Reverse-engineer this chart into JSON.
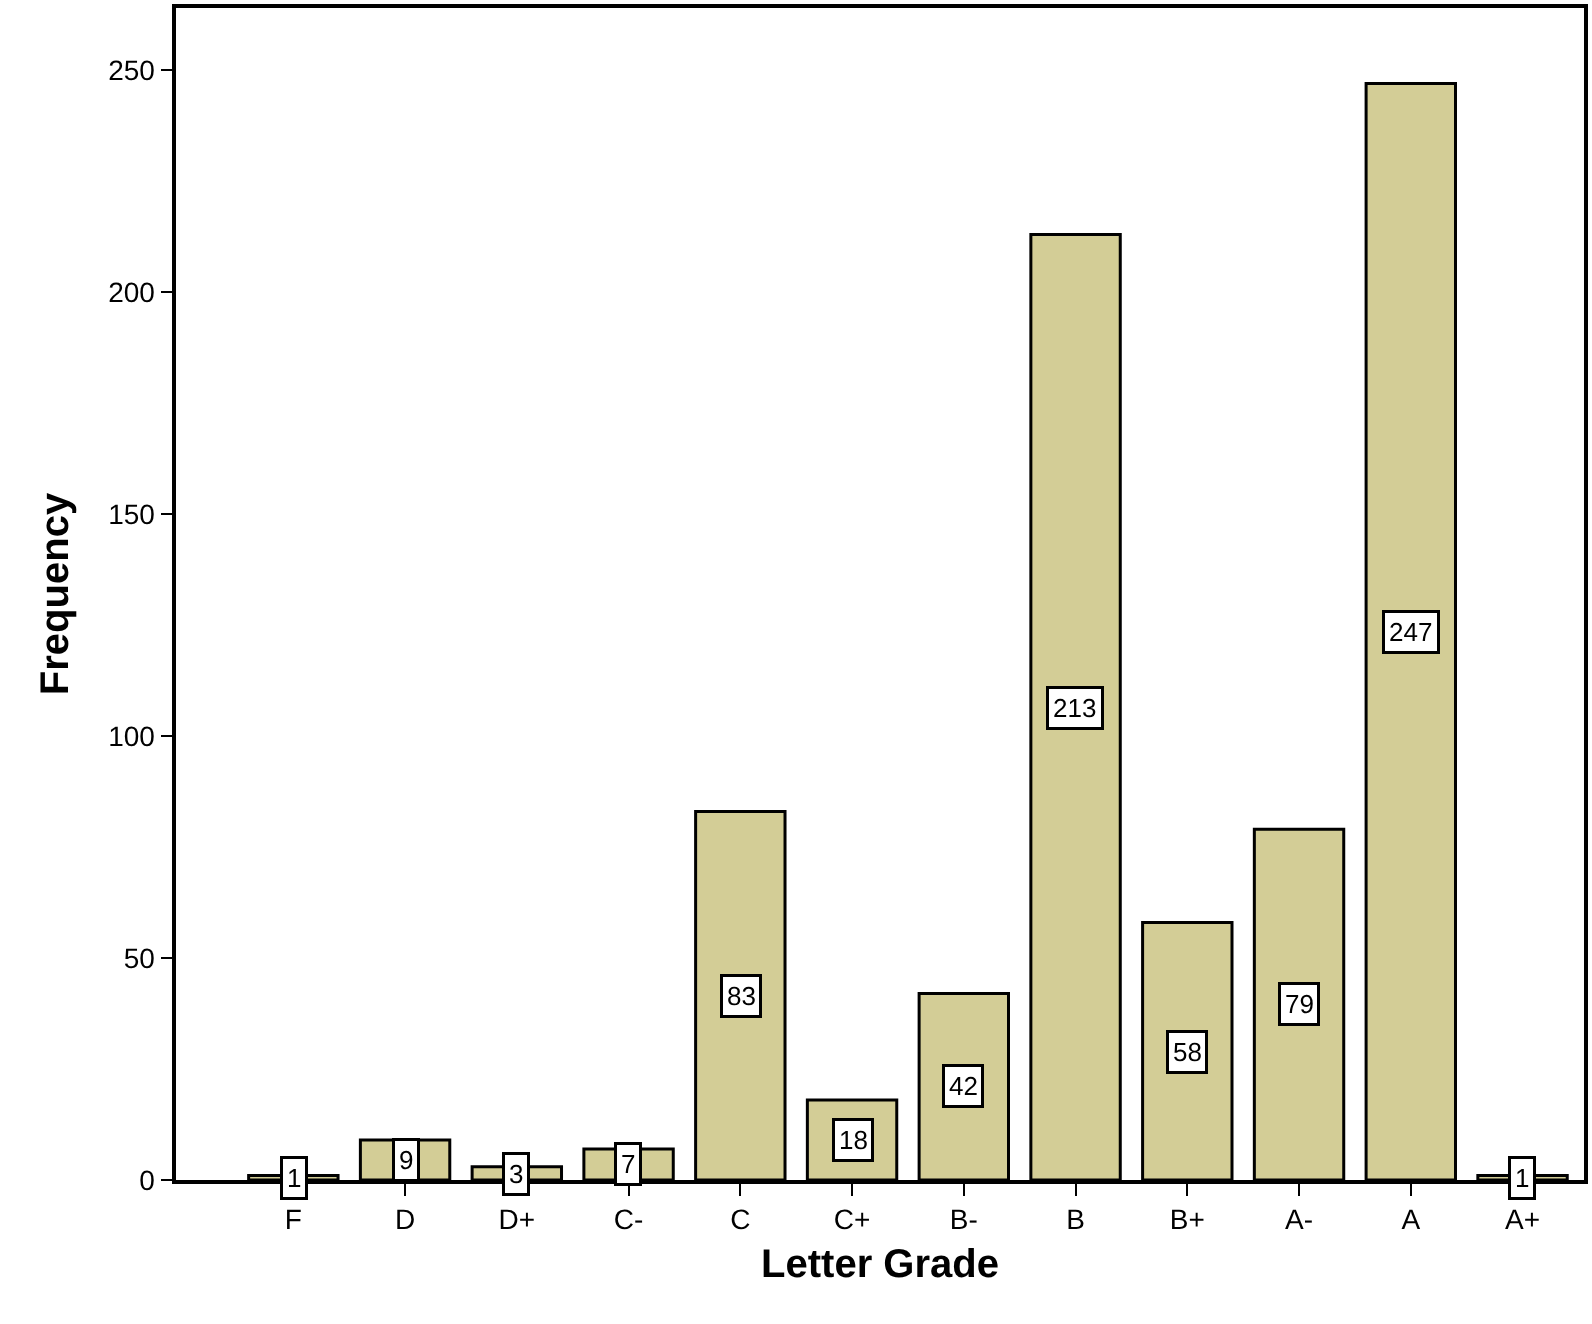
{
  "chart_data": {
    "type": "bar",
    "xlabel": "Letter Grade",
    "ylabel": "Frequency",
    "categories": [
      "F",
      "D",
      "D+",
      "C-",
      "C",
      "C+",
      "B-",
      "B",
      "B+",
      "A-",
      "A",
      "A+"
    ],
    "values": [
      1,
      9,
      3,
      7,
      83,
      18,
      42,
      213,
      58,
      79,
      247,
      1
    ],
    "color": "#d3cd96",
    "ylim": [
      0,
      264
    ],
    "yticks": [
      0,
      50,
      100,
      150,
      200,
      250
    ],
    "data_labels": true
  }
}
